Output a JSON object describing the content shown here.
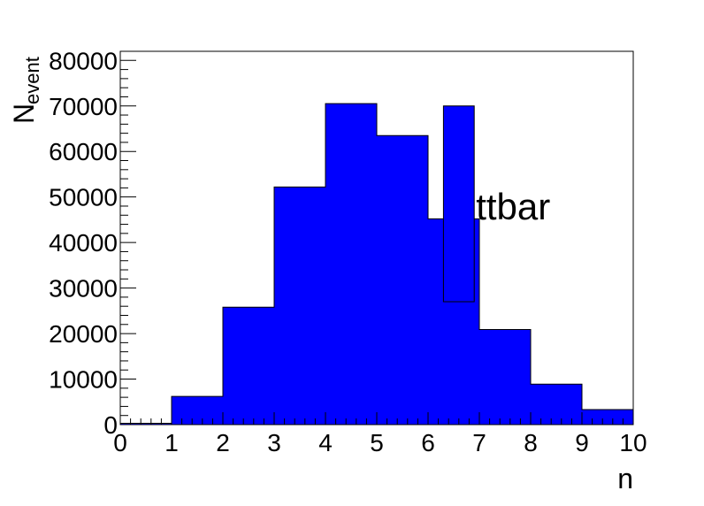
{
  "chart_data": {
    "type": "bar",
    "title": "",
    "xlabel": "n",
    "ylabel_main": "N",
    "ylabel_sub": "event",
    "xlim": [
      0,
      10
    ],
    "ylim": [
      0,
      82000
    ],
    "x_ticks": [
      "0",
      "1",
      "2",
      "3",
      "4",
      "5",
      "6",
      "7",
      "8",
      "9",
      "10"
    ],
    "y_ticks": [
      "0",
      "10000",
      "20000",
      "30000",
      "40000",
      "50000",
      "60000",
      "70000",
      "80000"
    ],
    "bins": [
      {
        "x0": 0,
        "x1": 1,
        "value": 300
      },
      {
        "x0": 1,
        "x1": 2,
        "value": 6200
      },
      {
        "x0": 2,
        "x1": 3,
        "value": 25800
      },
      {
        "x0": 3,
        "x1": 4,
        "value": 52200
      },
      {
        "x0": 4,
        "x1": 5,
        "value": 70500
      },
      {
        "x0": 5,
        "x1": 6,
        "value": 63500
      },
      {
        "x0": 6,
        "x1": 7,
        "value": 45200
      },
      {
        "x0": 7,
        "x1": 8,
        "value": 20900
      },
      {
        "x0": 8,
        "x1": 9,
        "value": 8900
      },
      {
        "x0": 9,
        "x1": 10,
        "value": 3300
      }
    ],
    "legend_box": {
      "x0": 6.3,
      "x1": 6.9,
      "y0": 27000,
      "y1": 70000
    },
    "legend_label": "ttbar",
    "fill_color": "#0000ff",
    "line_color": "#000000",
    "grid": false
  }
}
